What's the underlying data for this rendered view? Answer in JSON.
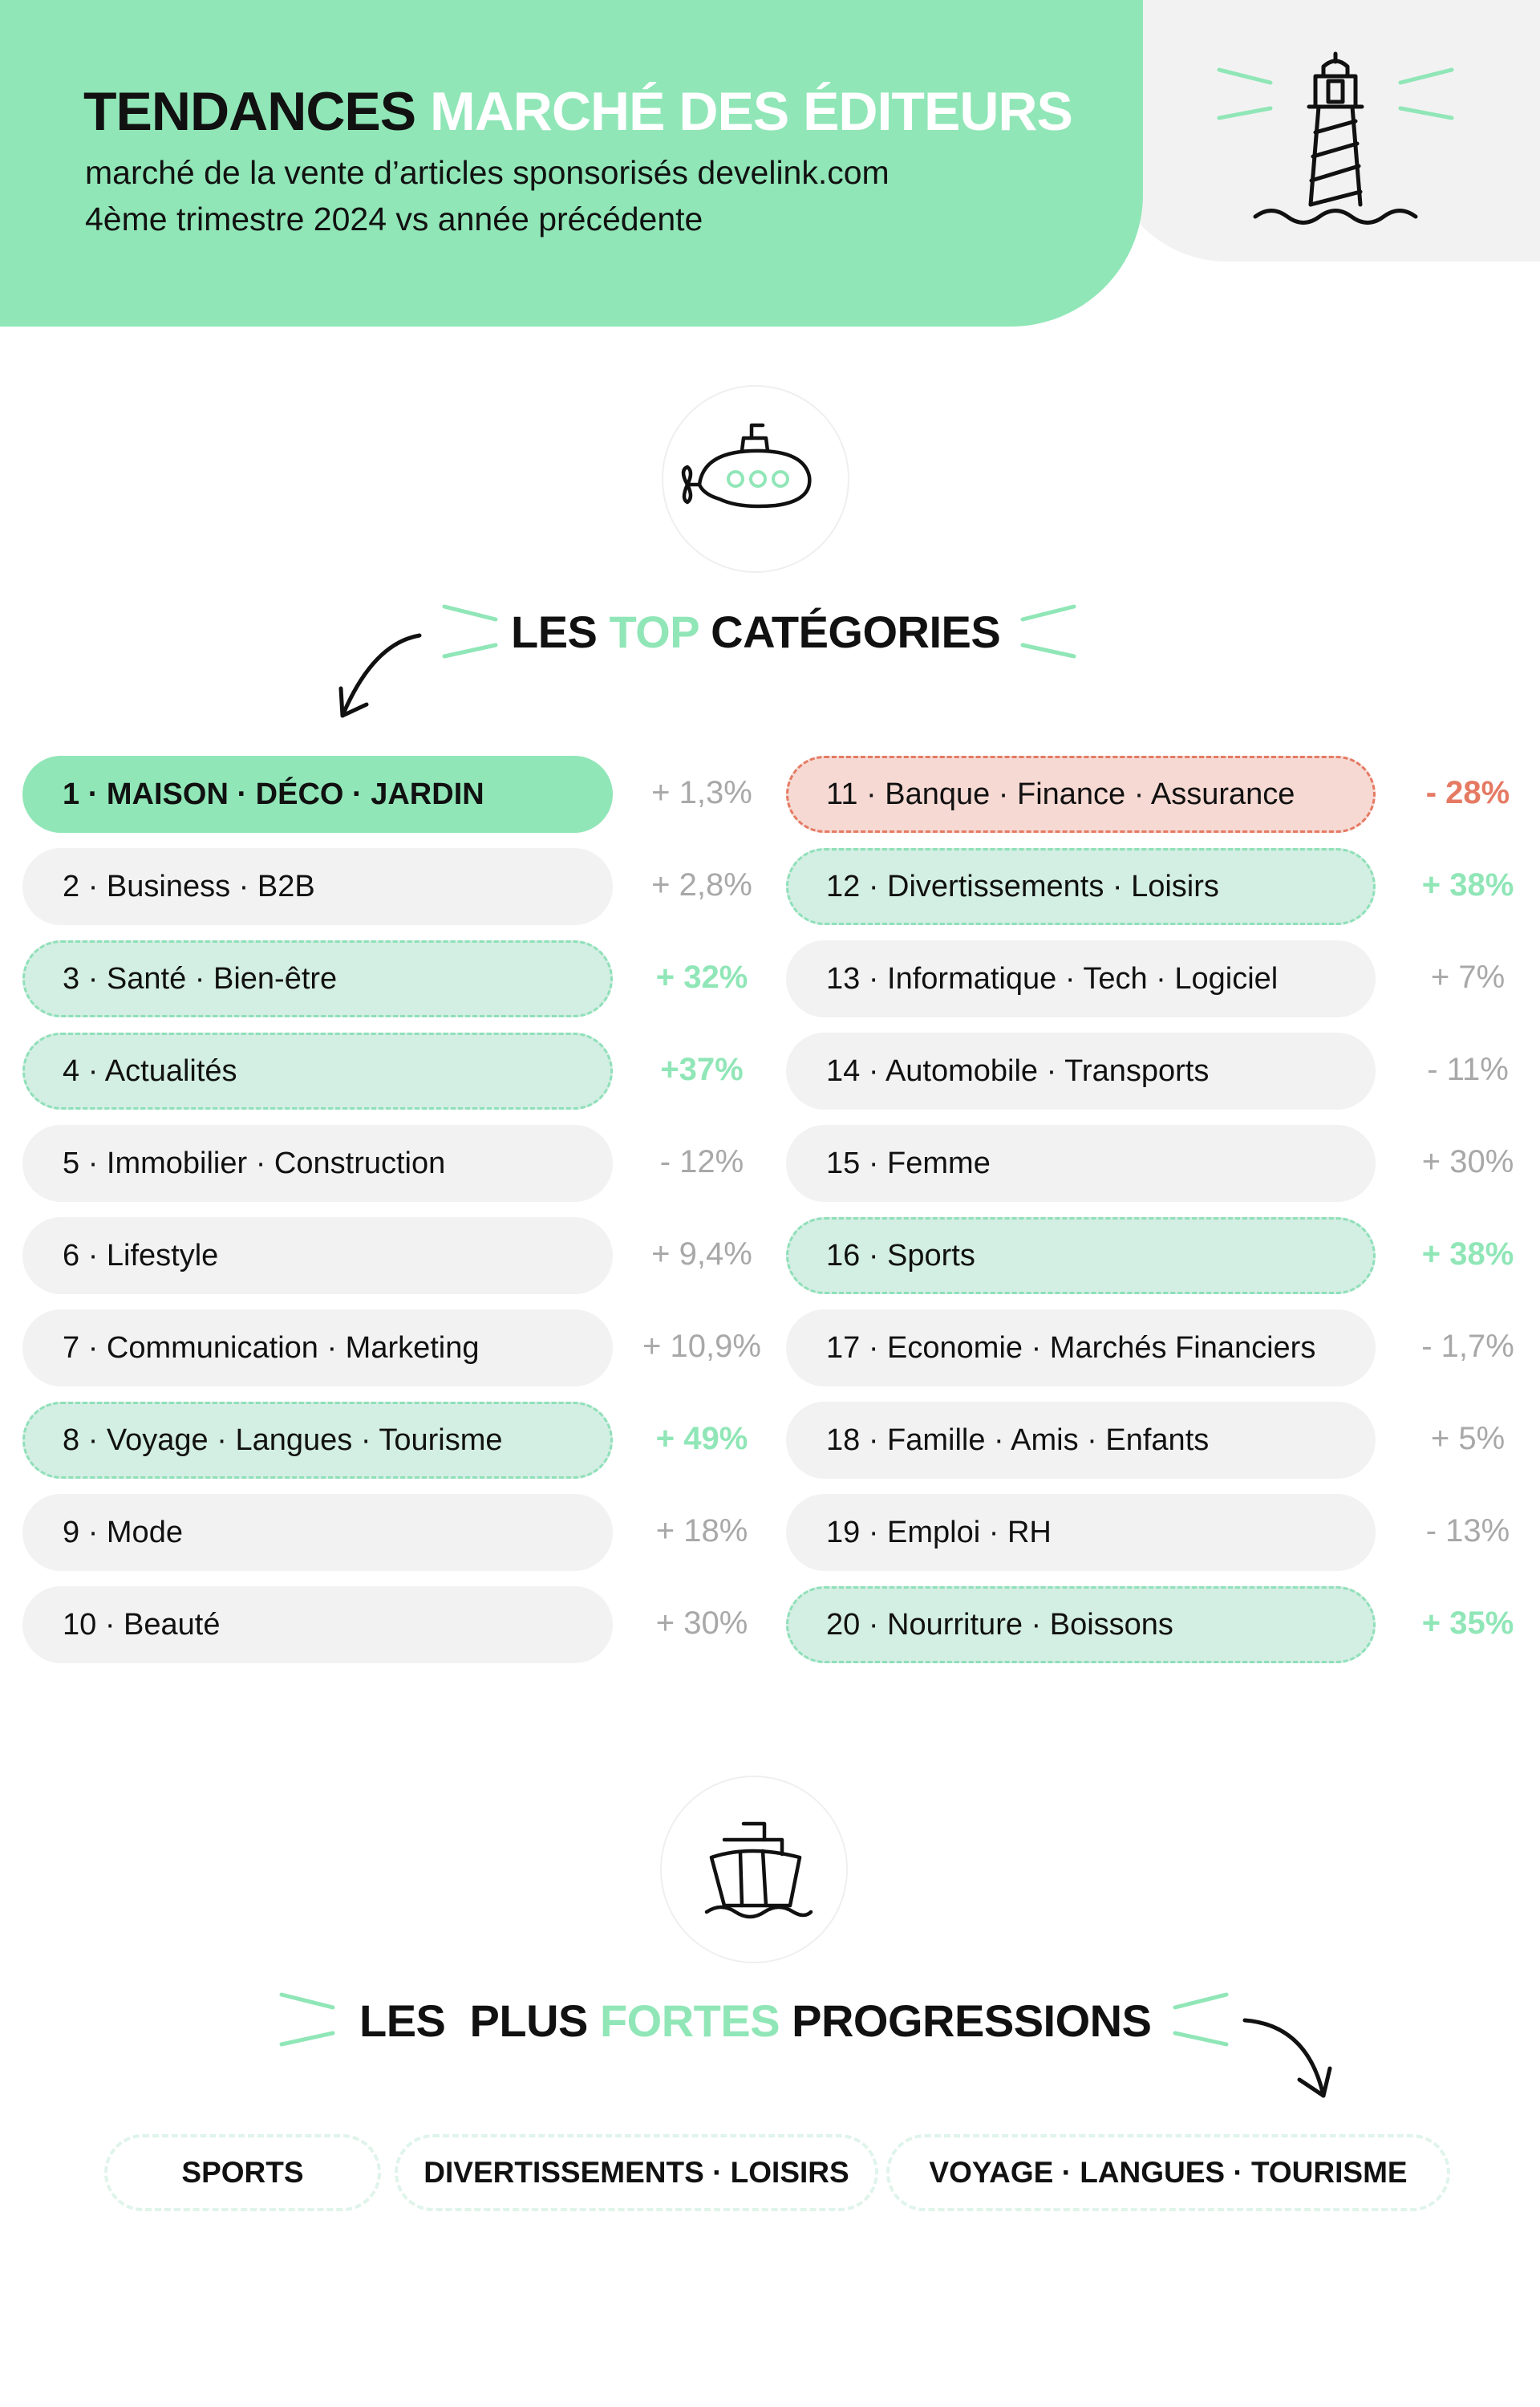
{
  "header": {
    "title_black": "TENDANCES",
    "title_white": "MARCHÉ DES ÉDITEURS",
    "subtitle_line1": "marché de la vente d’articles sponsorisés develink.com",
    "subtitle_line2": "4ème trimestre 2024 vs année précédente"
  },
  "top_section": {
    "title_part1": "LES",
    "title_highlight": "TOP",
    "title_part2": "CATÉGORIES",
    "icon": "submarine-icon",
    "arrow_icon": "curved-arrow-down-left-icon"
  },
  "categories_left": [
    {
      "label": "1 · MAISON · DÉCO · JARDIN",
      "change": "+ 1,3%",
      "style": "top"
    },
    {
      "label": "2 · Business · B2B",
      "change": "+ 2,8%",
      "style": "plain"
    },
    {
      "label": "3 · Santé · Bien-être",
      "change": "+ 32%",
      "style": "green"
    },
    {
      "label": "4 · Actualités",
      "change": "+37%",
      "style": "green"
    },
    {
      "label": "5 · Immobilier · Construction",
      "change": "- 12%",
      "style": "plain"
    },
    {
      "label": "6 · Lifestyle",
      "change": "+ 9,4%",
      "style": "plain"
    },
    {
      "label": "7 · Communication · Marketing",
      "change": "+ 10,9%",
      "style": "plain"
    },
    {
      "label": "8 · Voyage · Langues · Tourisme",
      "change": "+ 49%",
      "style": "green"
    },
    {
      "label": "9 · Mode",
      "change": "+ 18%",
      "style": "plain"
    },
    {
      "label": "10 · Beauté",
      "change": "+ 30%",
      "style": "plain"
    }
  ],
  "categories_right": [
    {
      "label": "11 · Banque · Finance · Assurance",
      "change": "- 28%",
      "style": "red"
    },
    {
      "label": "12 · Divertissements · Loisirs",
      "change": "+ 38%",
      "style": "green"
    },
    {
      "label": "13 · Informatique · Tech · Logiciel",
      "change": "+ 7%",
      "style": "plain"
    },
    {
      "label": "14 · Automobile · Transports",
      "change": "- 11%",
      "style": "plain"
    },
    {
      "label": "15 · Femme",
      "change": "+ 30%",
      "style": "plain"
    },
    {
      "label": "16 · Sports",
      "change": "+ 38%",
      "style": "green"
    },
    {
      "label": "17 · Economie · Marchés Financiers",
      "change": "- 1,7%",
      "style": "plain"
    },
    {
      "label": "18 · Famille · Amis · Enfants",
      "change": "+ 5%",
      "style": "plain"
    },
    {
      "label": "19 · Emploi · RH",
      "change": "- 13%",
      "style": "plain"
    },
    {
      "label": "20 · Nourriture · Boissons",
      "change": "+ 35%",
      "style": "green"
    }
  ],
  "progress_section": {
    "title_part1": "LES  PLUS",
    "title_highlight": "FORTES",
    "title_part2": "PROGRESSIONS",
    "icon": "ship-icon",
    "arrow_icon": "curved-arrow-down-right-icon",
    "chips": [
      "SPORTS",
      "DIVERTISSEMENTS · LOISIRS",
      "VOYAGE · LANGUES · TOURISME"
    ]
  },
  "colors": {
    "green": "#90e6b7",
    "green_light": "#d3eee3",
    "red": "#e57a63",
    "red_light": "#f6d9d3",
    "grey_pill": "#f2f2f2",
    "grey_text": "#a8a8a8"
  }
}
